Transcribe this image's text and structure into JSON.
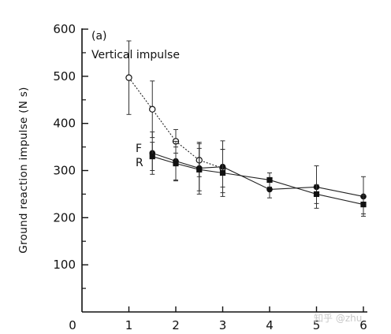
{
  "chart_data": {
    "type": "line",
    "panel_label": "(a)",
    "subtitle": "Vertical impulse",
    "ylabel": "Ground reaction impulse (N s)",
    "xlabel": "",
    "xlim": [
      0,
      6
    ],
    "ylim": [
      0,
      600
    ],
    "x_ticks": [
      0,
      1,
      2,
      3,
      4,
      5,
      6
    ],
    "y_ticks": [
      100,
      200,
      300,
      400,
      500,
      600
    ],
    "grid": false,
    "series": [
      {
        "marker": "open-circle",
        "x": [
          1,
          1.5,
          2,
          2.5,
          3
        ],
        "y": [
          497,
          430,
          362,
          322,
          305
        ],
        "err": [
          78,
          60,
          25,
          35,
          40
        ]
      },
      {
        "name": "F",
        "marker": "filled-circle",
        "x": [
          1.5,
          2,
          2.5,
          3,
          4,
          5,
          6
        ],
        "y": [
          337,
          320,
          305,
          308,
          260,
          265,
          245
        ],
        "err": [
          45,
          42,
          55,
          55,
          18,
          45,
          42
        ]
      },
      {
        "name": "R",
        "marker": "filled-square",
        "x": [
          1.5,
          2,
          2.5,
          3,
          4,
          5,
          6
        ],
        "y": [
          330,
          315,
          302,
          295,
          280,
          250,
          228
        ],
        "err": [
          30,
          35,
          45,
          50,
          15,
          20,
          20
        ]
      }
    ]
  },
  "watermark": "知乎 @zhu"
}
